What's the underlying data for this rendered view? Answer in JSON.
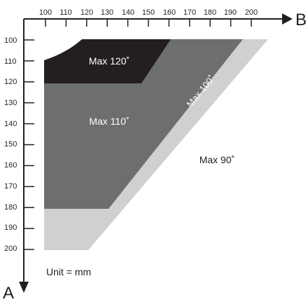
{
  "axis_b": {
    "label": "B",
    "tick_labels": [
      "100",
      "110",
      "120",
      "130",
      "140",
      "150",
      "160",
      "170",
      "180",
      "190",
      "200"
    ]
  },
  "axis_a": {
    "label": "A",
    "tick_labels": [
      "100",
      "110",
      "120",
      "130",
      "140",
      "150",
      "160",
      "170",
      "180",
      "190",
      "200"
    ]
  },
  "regions": [
    {
      "label": "Max 120˚",
      "color": "#231f20"
    },
    {
      "label": "Max 110˚",
      "color": "#6d6e70"
    },
    {
      "label": "Max 100˚",
      "color": "#d0d0d0"
    },
    {
      "label": "Max 90˚",
      "color": "#ffffff"
    }
  ],
  "unit_label": "Unit = mm"
}
